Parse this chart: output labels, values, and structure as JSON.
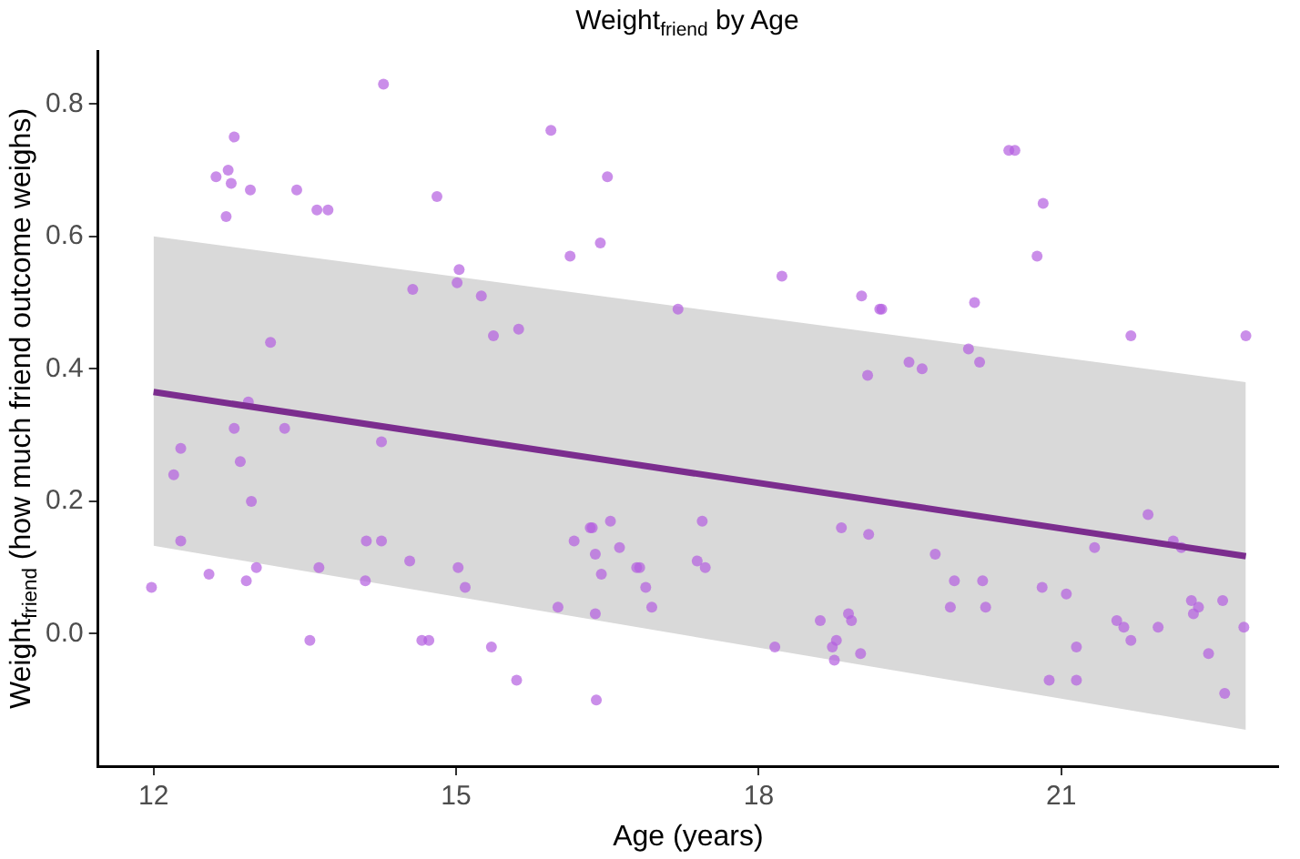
{
  "chart_data": {
    "type": "scatter",
    "title": "Weight$_{friend}$ by Age",
    "xlabel": "Age (years)",
    "ylabel": "Weight$_{friend}$ (how much friend outcome weighs)",
    "xlim": [
      11.45,
      23.15
    ],
    "ylim": [
      -0.2,
      0.88
    ],
    "xticks": [
      12,
      15,
      18,
      21
    ],
    "yticks": [
      {
        "value": 0,
        "label": "0.0"
      },
      {
        "value": 0.2,
        "label": "0.2"
      },
      {
        "value": 0.4,
        "label": "0.4"
      },
      {
        "value": 0.6,
        "label": "0.6"
      },
      {
        "value": 0.8,
        "label": "0.8"
      }
    ],
    "marker": "circle",
    "series": [
      {
        "type": "scatter",
        "color": "#b35ee0",
        "x": [
          12.62,
          12.74,
          12.8,
          12.77,
          12.72,
          12.96,
          13.42,
          13.62,
          13.73,
          14.28,
          14.81,
          14.57,
          15.01,
          15.03,
          15.25,
          15.37,
          15.62,
          15.94,
          16.13,
          16.43,
          16.5,
          13.16,
          12.94,
          17.2,
          18.23,
          19.02,
          19.22,
          19.2,
          19.08,
          19.49,
          19.62,
          20.08,
          20.14,
          20.19,
          20.48,
          20.54,
          20.82,
          20.76,
          21.69,
          22.83,
          11.98,
          12.2,
          12.27,
          12.27,
          12.55,
          12.8,
          12.86,
          12.97,
          12.92,
          13.02,
          13.3,
          13.55,
          13.64,
          14.1,
          14.11,
          14.26,
          14.26,
          14.54,
          14.66,
          14.73,
          15.02,
          15.09,
          15.35,
          15.6,
          16.01,
          16.17,
          16.33,
          16.35,
          16.38,
          16.38,
          16.39,
          16.44,
          16.53,
          16.62,
          16.79,
          16.82,
          16.88,
          16.94,
          17.44,
          17.39,
          17.47,
          18.16,
          18.61,
          18.73,
          18.75,
          18.77,
          18.82,
          18.89,
          18.92,
          19.01,
          19.09,
          19.75,
          19.94,
          19.9,
          20.22,
          20.25,
          20.81,
          20.88,
          21.05,
          21.15,
          21.15,
          21.33,
          21.55,
          21.62,
          21.69,
          21.86,
          21.96,
          22.11,
          22.19,
          22.29,
          22.36,
          22.31,
          22.46,
          22.6,
          22.62,
          22.81
        ],
        "values": [
          0.69,
          0.7,
          0.75,
          0.68,
          0.63,
          0.67,
          0.67,
          0.64,
          0.64,
          0.83,
          0.66,
          0.52,
          0.53,
          0.55,
          0.51,
          0.45,
          0.46,
          0.76,
          0.57,
          0.59,
          0.69,
          0.44,
          0.35,
          0.49,
          0.54,
          0.51,
          0.49,
          0.49,
          0.39,
          0.41,
          0.4,
          0.43,
          0.5,
          0.41,
          0.73,
          0.73,
          0.65,
          0.57,
          0.45,
          0.45,
          0.07,
          0.24,
          0.28,
          0.14,
          0.09,
          0.31,
          0.26,
          0.2,
          0.08,
          0.1,
          0.31,
          -0.01,
          0.1,
          0.08,
          0.14,
          0.29,
          0.14,
          0.11,
          -0.01,
          -0.01,
          0.1,
          0.07,
          -0.02,
          -0.07,
          0.04,
          0.14,
          0.16,
          0.16,
          0.12,
          0.03,
          -0.1,
          0.09,
          0.17,
          0.13,
          0.1,
          0.1,
          0.07,
          0.04,
          0.17,
          0.11,
          0.1,
          -0.02,
          0.02,
          -0.02,
          -0.04,
          -0.01,
          0.16,
          0.03,
          0.02,
          -0.03,
          0.15,
          0.12,
          0.08,
          0.04,
          0.08,
          0.04,
          0.07,
          -0.07,
          0.06,
          -0.02,
          -0.07,
          0.13,
          0.02,
          0.01,
          -0.01,
          0.18,
          0.01,
          0.14,
          0.13,
          0.05,
          0.04,
          0.03,
          -0.03,
          0.05,
          -0.09,
          0.01
        ]
      },
      {
        "type": "line",
        "color": "#7b2d8e",
        "marker": "none",
        "x": [
          12,
          22.83
        ],
        "values": [
          0.365,
          0.117
        ],
        "lower": [
          0.133,
          -0.145
        ],
        "upper": [
          0.6,
          0.38
        ]
      }
    ]
  }
}
